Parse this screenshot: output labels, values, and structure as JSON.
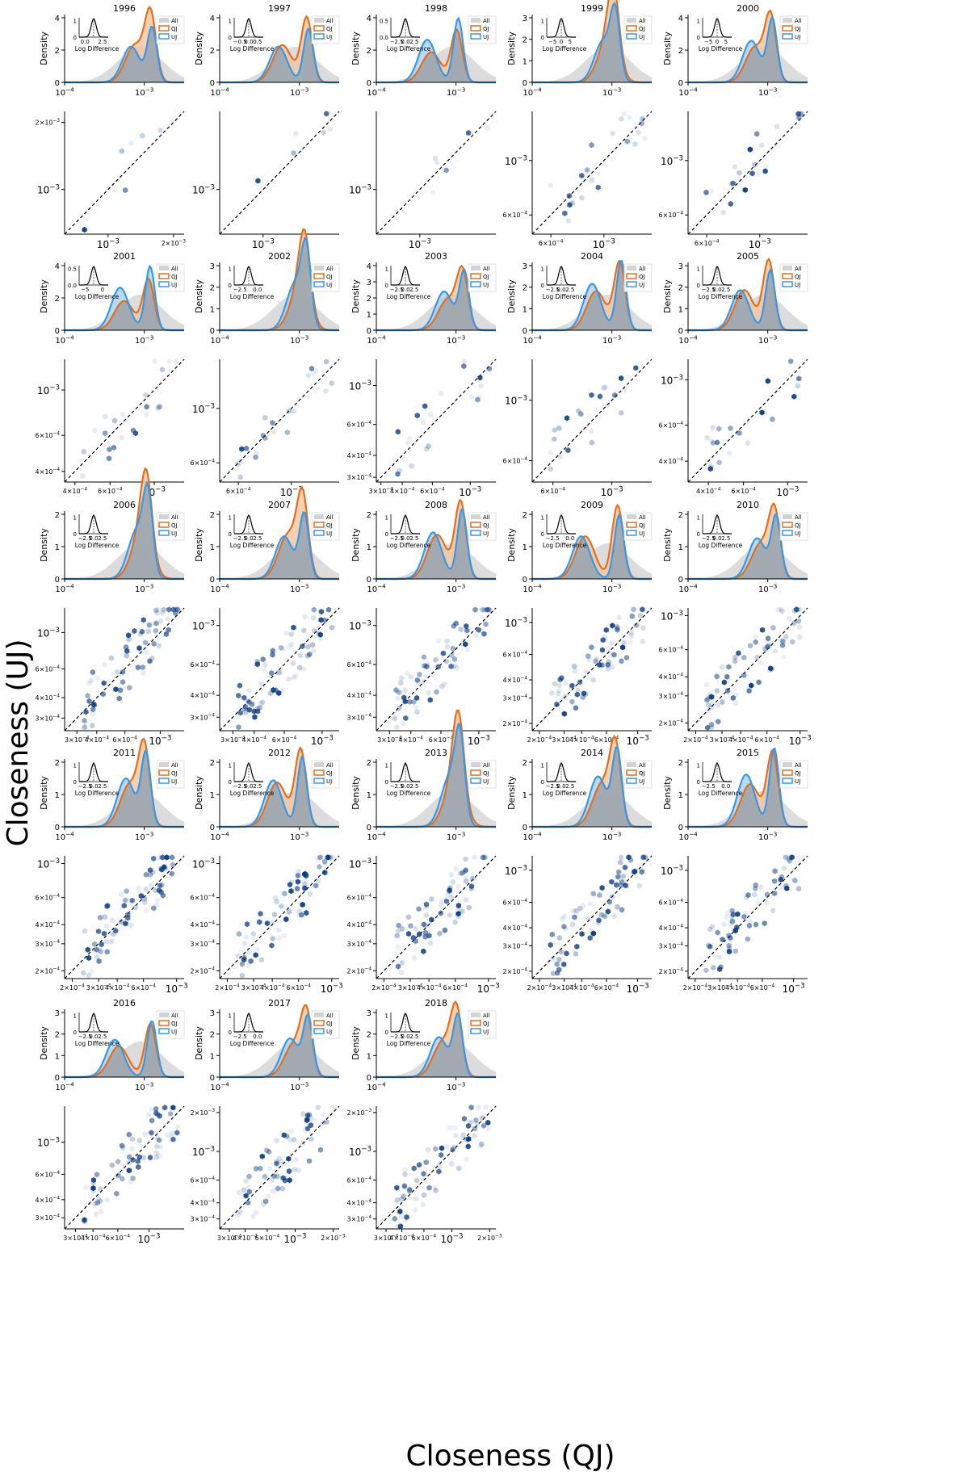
{
  "figure": {
    "ylabel": "Closeness (UJ)",
    "xlabel": "Closeness (QJ)",
    "density_ylabel": "Density",
    "inset_xlabel": "Log Difference",
    "legend": [
      "All",
      "QJ",
      "UJ"
    ],
    "colors": {
      "all": "#d3d3d3",
      "qj": "#e36f1e",
      "uj": "#3a97e8",
      "hex": "#0b3c80",
      "overlap": "#9a9a9a"
    }
  },
  "chart_data": [
    {
      "type": "area",
      "year": "1996",
      "density_ymax": 4,
      "density_ticks": [
        "0",
        "2",
        "4"
      ],
      "density_xticks": [
        "10^-4",
        "10^-3"
      ],
      "qj_peak": 4.2,
      "uj_peak": 3.7,
      "inset_yticks": [
        "0",
        "1"
      ],
      "inset_xticks": [
        "0.0",
        "2.5"
      ],
      "scatter_xticks": [
        "10^-3",
        "2×10^-3"
      ],
      "scatter_yticks": [
        "10^-3",
        "2×10^-3"
      ],
      "scatter_log_range": [
        -3.2,
        -2.65
      ]
    },
    {
      "type": "area",
      "year": "1997",
      "density_ymax": 4,
      "density_ticks": [
        "0",
        "2",
        "4"
      ],
      "density_xticks": [
        "10^-4",
        "10^-3"
      ],
      "qj_peak": 4.2,
      "uj_peak": 3.7,
      "inset_yticks": [
        "0",
        "1"
      ],
      "inset_xticks": [
        "-0.5",
        "0.0",
        "0.5"
      ],
      "scatter_xticks": [
        "10^-3"
      ],
      "scatter_yticks": [
        "10^-3"
      ],
      "scatter_log_range": [
        -3.2,
        -2.65
      ]
    },
    {
      "type": "area",
      "year": "1998",
      "density_ymax": 4,
      "density_ticks": [
        "0",
        "2",
        "4"
      ],
      "density_xticks": [
        "10^-4",
        "10^-3"
      ],
      "qj_peak": 3.4,
      "uj_peak": 4.4,
      "inset_yticks": [
        "0.0",
        "0.5"
      ],
      "inset_xticks": [
        "-2.5",
        "0.0",
        "2.5"
      ],
      "scatter_xticks": [
        "10^-3"
      ],
      "scatter_yticks": [
        "10^-3"
      ],
      "scatter_log_range": [
        -3.2,
        -2.65
      ]
    },
    {
      "type": "area",
      "year": "1999",
      "density_ymax": 3,
      "density_ticks": [
        "0",
        "1",
        "2",
        "3"
      ],
      "density_xticks": [
        "10^-4",
        "10^-3"
      ],
      "qj_peak": 3.3,
      "uj_peak": 3.2,
      "inset_yticks": [
        "0",
        "1"
      ],
      "inset_xticks": [
        "-5",
        "0",
        "5"
      ],
      "scatter_xticks": [
        "6×10^-4",
        "10^-3"
      ],
      "scatter_yticks": [
        "6×10^-4",
        "10^-3"
      ],
      "scatter_log_range": [
        -3.3,
        -2.8
      ]
    },
    {
      "type": "area",
      "year": "2000",
      "density_ymax": 4,
      "density_ticks": [
        "0",
        "2",
        "4"
      ],
      "density_xticks": [
        "10^-4",
        "10^-3"
      ],
      "qj_peak": 4.0,
      "uj_peak": 4.3,
      "inset_yticks": [
        "0",
        "1"
      ],
      "inset_xticks": [
        "-5",
        "0",
        "5"
      ],
      "scatter_xticks": [
        "6×10^-4",
        "10^-3"
      ],
      "scatter_yticks": [
        "6×10^-4",
        "10^-3"
      ],
      "scatter_log_range": [
        -3.3,
        -2.8
      ]
    },
    {
      "type": "area",
      "year": "2001",
      "density_ymax": 4,
      "density_ticks": [
        "0",
        "2",
        "4"
      ],
      "density_xticks": [
        "10^-4",
        "10^-3"
      ],
      "qj_peak": 3.3,
      "uj_peak": 4.4,
      "inset_yticks": [
        "0.0",
        "0.5"
      ],
      "inset_xticks": [
        "-5",
        "0"
      ],
      "scatter_xticks": [
        "4×10^-4",
        "6×10^-4",
        "10^-3"
      ],
      "scatter_yticks": [
        "4×10^-4",
        "6×10^-4",
        "10^-3"
      ],
      "scatter_log_range": [
        -3.45,
        -2.85
      ]
    },
    {
      "type": "area",
      "year": "2002",
      "density_ymax": 3,
      "density_ticks": [
        "0",
        "1",
        "2",
        "3"
      ],
      "density_xticks": [
        "10^-4",
        "10^-3"
      ],
      "qj_peak": 3.3,
      "uj_peak": 3.6,
      "inset_yticks": [
        "0",
        "1"
      ],
      "inset_xticks": [
        "-2.5",
        "0.0"
      ],
      "scatter_xticks": [
        "6×10^-4",
        "10^-3"
      ],
      "scatter_yticks": [
        "6×10^-4",
        "10^-3"
      ],
      "scatter_log_range": [
        -3.3,
        -2.8
      ]
    },
    {
      "type": "area",
      "year": "2003",
      "density_ymax": 4,
      "density_ticks": [
        "0",
        "1",
        "2",
        "3",
        "4"
      ],
      "density_xticks": [
        "10^-4",
        "10^-3"
      ],
      "qj_peak": 3.5,
      "uj_peak": 4.0,
      "inset_yticks": [
        "0",
        "1"
      ],
      "inset_xticks": [
        "-2.5",
        "0.0",
        "2.5"
      ],
      "scatter_xticks": [
        "3×10^-4",
        "4×10^-4",
        "6×10^-4",
        "10^-3"
      ],
      "scatter_yticks": [
        "3×10^-4",
        "4×10^-4",
        "6×10^-4",
        "10^-3"
      ],
      "scatter_log_range": [
        -3.55,
        -2.85
      ]
    },
    {
      "type": "area",
      "year": "2004",
      "density_ymax": 3,
      "density_ticks": [
        "0",
        "1",
        "2",
        "3"
      ],
      "density_xticks": [
        "10^-4",
        "10^-3"
      ],
      "qj_peak": 3.3,
      "uj_peak": 3.6,
      "inset_yticks": [
        "0",
        "1"
      ],
      "inset_xticks": [
        "-2.5",
        "0.0",
        "2.5"
      ],
      "scatter_xticks": [
        "6×10^-4",
        "10^-3"
      ],
      "scatter_yticks": [
        "6×10^-4",
        "10^-3"
      ],
      "scatter_log_range": [
        -3.3,
        -2.85
      ]
    },
    {
      "type": "area",
      "year": "2005",
      "density_ymax": 3,
      "density_ticks": [
        "0",
        "1",
        "2",
        "3"
      ],
      "density_xticks": [
        "10^-4",
        "10^-3"
      ],
      "qj_peak": 3.4,
      "uj_peak": 3.1,
      "inset_yticks": [
        "0",
        "1"
      ],
      "inset_xticks": [
        "-2.5",
        "0.0",
        "2.5"
      ],
      "scatter_xticks": [
        "4×10^-4",
        "6×10^-4",
        "10^-3"
      ],
      "scatter_yticks": [
        "4×10^-4",
        "6×10^-4",
        "10^-3"
      ],
      "scatter_log_range": [
        -3.5,
        -2.9
      ]
    },
    {
      "type": "area",
      "year": "2006",
      "density_ymax": 2,
      "density_ticks": [
        "0",
        "1",
        "2"
      ],
      "density_xticks": [
        "10^-4",
        "10^-3"
      ],
      "qj_peak": 2.4,
      "uj_peak": 2.5,
      "inset_yticks": [
        "0",
        "1"
      ],
      "inset_xticks": [
        "-2.5",
        "0.0",
        "2.5"
      ],
      "scatter_xticks": [
        "3×10^-4",
        "4×10^-4",
        "6×10^-4",
        "10^-3"
      ],
      "scatter_yticks": [
        "3×10^-4",
        "4×10^-4",
        "6×10^-4",
        "10^-3"
      ],
      "scatter_log_range": [
        -3.6,
        -2.85
      ]
    },
    {
      "type": "area",
      "year": "2007",
      "density_ymax": 2,
      "density_ticks": [
        "0",
        "1",
        "2"
      ],
      "density_xticks": [
        "10^-4",
        "10^-3"
      ],
      "qj_peak": 2.5,
      "uj_peak": 2.2,
      "inset_yticks": [
        "0",
        "1"
      ],
      "inset_xticks": [
        "-2.5",
        "0.0",
        "2.5"
      ],
      "scatter_xticks": [
        "3×10^-4",
        "4×10^-4",
        "6×10^-4",
        "10^-3"
      ],
      "scatter_yticks": [
        "3×10^-4",
        "4×10^-4",
        "6×10^-4",
        "10^-3"
      ],
      "scatter_log_range": [
        -3.6,
        -2.9
      ]
    },
    {
      "type": "area",
      "year": "2008",
      "density_ymax": 2,
      "density_ticks": [
        "0",
        "1",
        "2"
      ],
      "density_xticks": [
        "10^-4",
        "10^-3"
      ],
      "qj_peak": 2.5,
      "uj_peak": 2.4,
      "inset_yticks": [
        "0",
        "1"
      ],
      "inset_xticks": [
        "-2.5",
        "0.0",
        "2.5"
      ],
      "scatter_xticks": [
        "3×10^-4",
        "4×10^-4",
        "6×10^-4",
        "10^-3"
      ],
      "scatter_yticks": [
        "3×10^-4",
        "4×10^-4",
        "6×10^-4",
        "10^-3"
      ],
      "scatter_log_range": [
        -3.6,
        -2.9
      ]
    },
    {
      "type": "area",
      "year": "2009",
      "density_ymax": 2,
      "density_ticks": [
        "0",
        "1",
        "2"
      ],
      "density_xticks": [
        "10^-4",
        "10^-3"
      ],
      "qj_peak": 2.4,
      "uj_peak": 2.2,
      "inset_yticks": [
        "0",
        "1"
      ],
      "inset_xticks": [
        "-2.5",
        "0.0"
      ],
      "scatter_xticks": [
        "2×10^-4",
        "3×10^-4",
        "4×10^-4",
        "6×10^-4",
        "10^-3"
      ],
      "scatter_yticks": [
        "2×10^-4",
        "3×10^-4",
        "4×10^-4",
        "6×10^-4",
        "10^-3"
      ],
      "scatter_log_range": [
        -3.75,
        -2.9
      ]
    },
    {
      "type": "area",
      "year": "2010",
      "density_ymax": 2,
      "density_ticks": [
        "0",
        "1",
        "2"
      ],
      "density_xticks": [
        "10^-4",
        "10^-3"
      ],
      "qj_peak": 2.0,
      "uj_peak": 2.1,
      "inset_yticks": [
        "0",
        "1"
      ],
      "inset_xticks": [
        "-2.5",
        "0.0",
        "2.5"
      ],
      "scatter_xticks": [
        "2×10^-4",
        "3×10^-4",
        "4×10^-4",
        "6×10^-4",
        "10^-3"
      ],
      "scatter_yticks": [
        "2×10^-4",
        "3×10^-4",
        "4×10^-4",
        "6×10^-4",
        "10^-3"
      ],
      "scatter_log_range": [
        -3.75,
        -2.95
      ]
    },
    {
      "type": "area",
      "year": "2011",
      "density_ymax": 2,
      "density_ticks": [
        "0",
        "1",
        "2"
      ],
      "density_xticks": [
        "10^-4",
        "10^-3"
      ],
      "qj_peak": 2.4,
      "uj_peak": 2.5,
      "inset_yticks": [
        "0",
        "1"
      ],
      "inset_xticks": [
        "-2.5",
        "0.0",
        "2.5"
      ],
      "scatter_xticks": [
        "2×10^-4",
        "3×10^-4",
        "4×10^-4",
        "6×10^-4",
        "10^-3"
      ],
      "scatter_yticks": [
        "2×10^-4",
        "3×10^-4",
        "4×10^-4",
        "6×10^-4",
        "10^-3"
      ],
      "scatter_log_range": [
        -3.75,
        -2.95
      ]
    },
    {
      "type": "area",
      "year": "2012",
      "density_ymax": 2,
      "density_ticks": [
        "0",
        "1",
        "2"
      ],
      "density_xticks": [
        "10^-4",
        "10^-3"
      ],
      "qj_peak": 2.5,
      "uj_peak": 2.4,
      "inset_yticks": [
        "0",
        "1"
      ],
      "inset_xticks": [
        "-2.5",
        "0.0",
        "2.5"
      ],
      "scatter_xticks": [
        "2×10^-4",
        "3×10^-4",
        "4×10^-4",
        "6×10^-4",
        "10^-3"
      ],
      "scatter_yticks": [
        "2×10^-4",
        "3×10^-4",
        "4×10^-4",
        "6×10^-4",
        "10^-3"
      ],
      "scatter_log_range": [
        -3.75,
        -2.95
      ]
    },
    {
      "type": "area",
      "year": "2013",
      "density_ymax": 2,
      "density_ticks": [
        "0",
        "1",
        "2"
      ],
      "density_xticks": [
        "10^-4",
        "10^-3"
      ],
      "qj_peak": 2.5,
      "uj_peak": 2.6,
      "inset_yticks": [
        "0",
        "1"
      ],
      "inset_xticks": [
        "-2.5",
        "0.0",
        "2.5"
      ],
      "scatter_xticks": [
        "2×10^-4",
        "3×10^-4",
        "4×10^-4",
        "6×10^-4",
        "10^-3"
      ],
      "scatter_yticks": [
        "2×10^-4",
        "3×10^-4",
        "4×10^-4",
        "6×10^-4",
        "10^-3"
      ],
      "scatter_log_range": [
        -3.75,
        -2.95
      ]
    },
    {
      "type": "area",
      "year": "2014",
      "density_ymax": 2,
      "density_ticks": [
        "0",
        "1",
        "2"
      ],
      "density_xticks": [
        "10^-4",
        "10^-3"
      ],
      "qj_peak": 2.4,
      "uj_peak": 2.6,
      "inset_yticks": [
        "0",
        "1"
      ],
      "inset_xticks": [
        "-2.5",
        "0.0",
        "2.5"
      ],
      "scatter_xticks": [
        "2×10^-4",
        "3×10^-4",
        "4×10^-4",
        "6×10^-4",
        "10^-3"
      ],
      "scatter_yticks": [
        "2×10^-4",
        "3×10^-4",
        "4×10^-4",
        "6×10^-4",
        "10^-3"
      ],
      "scatter_log_range": [
        -3.75,
        -2.9
      ]
    },
    {
      "type": "area",
      "year": "2015",
      "density_ymax": 2,
      "density_ticks": [
        "0",
        "1",
        "2"
      ],
      "density_xticks": [
        "10^-4",
        "10^-3"
      ],
      "qj_peak": 2.4,
      "uj_peak": 2.7,
      "inset_yticks": [
        "0",
        "1"
      ],
      "inset_xticks": [
        "-2.5",
        "0.0"
      ],
      "scatter_xticks": [
        "2×10^-4",
        "3×10^-4",
        "4×10^-4",
        "6×10^-4",
        "10^-3"
      ],
      "scatter_yticks": [
        "2×10^-4",
        "3×10^-4",
        "4×10^-4",
        "6×10^-4",
        "10^-3"
      ],
      "scatter_log_range": [
        -3.75,
        -2.9
      ]
    },
    {
      "type": "area",
      "year": "2016",
      "density_ymax": 3,
      "density_ticks": [
        "0",
        "1",
        "2",
        "3"
      ],
      "density_xticks": [
        "10^-4",
        "10^-3"
      ],
      "qj_peak": 2.6,
      "uj_peak": 2.9,
      "inset_yticks": [
        "0",
        "1"
      ],
      "inset_xticks": [
        "-2.5",
        "0.0",
        "2.5"
      ],
      "scatter_xticks": [
        "3×10^-4",
        "4×10^-4",
        "6×10^-4",
        "10^-3"
      ],
      "scatter_yticks": [
        "3×10^-4",
        "4×10^-4",
        "6×10^-4",
        "10^-3"
      ],
      "scatter_log_range": [
        -3.6,
        -2.75
      ]
    },
    {
      "type": "area",
      "year": "2017",
      "density_ymax": 3,
      "density_ticks": [
        "0",
        "1",
        "2",
        "3"
      ],
      "density_xticks": [
        "10^-4",
        "10^-3"
      ],
      "qj_peak": 2.8,
      "uj_peak": 3.0,
      "inset_yticks": [
        "0",
        "1"
      ],
      "inset_xticks": [
        "-2.5",
        "0.0"
      ],
      "scatter_xticks": [
        "3×10^-4",
        "4×10^-4",
        "6×10^-4",
        "10^-3",
        "2×10^-3"
      ],
      "scatter_yticks": [
        "3×10^-4",
        "4×10^-4",
        "6×10^-4",
        "10^-3",
        "2×10^-3"
      ],
      "scatter_log_range": [
        -3.6,
        -2.65
      ]
    },
    {
      "type": "area",
      "year": "2018",
      "density_ymax": 3,
      "density_ticks": [
        "0",
        "1",
        "2",
        "3"
      ],
      "density_xticks": [
        "10^-4",
        "10^-3"
      ],
      "qj_peak": 3.0,
      "uj_peak": 3.1,
      "inset_yticks": [
        "0",
        "1"
      ],
      "inset_xticks": [
        "-2.5",
        "0.0",
        "2.5"
      ],
      "scatter_xticks": [
        "3×10^-4",
        "4×10^-4",
        "6×10^-4",
        "10^-3",
        "2×10^-3"
      ],
      "scatter_yticks": [
        "3×10^-4",
        "4×10^-4",
        "6×10^-4",
        "10^-3",
        "2×10^-3"
      ],
      "scatter_log_range": [
        -3.6,
        -2.65
      ]
    }
  ]
}
